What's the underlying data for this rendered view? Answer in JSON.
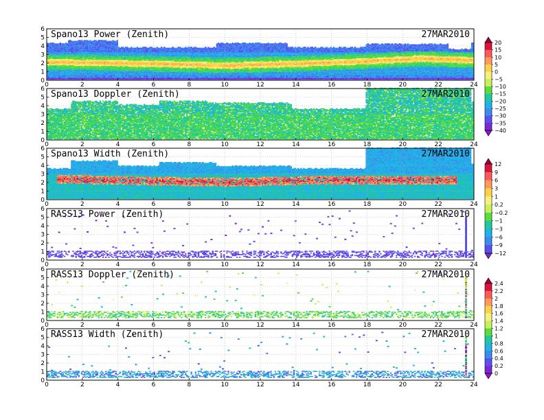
{
  "chart_data": [
    {
      "type": "heatmap",
      "title": "Spano13 Power (Zenith)",
      "date_label": "27MAR2010",
      "field": "power",
      "colorbar": "a",
      "xlim": [
        0,
        24
      ],
      "ylim": [
        0,
        6
      ],
      "x_ticks": [
        0,
        2,
        4,
        6,
        8,
        10,
        12,
        14,
        16,
        18,
        20,
        22,
        24
      ],
      "y_ticks": [
        0,
        1,
        2,
        3,
        4,
        5,
        6
      ],
      "top_height_km": [
        [
          0,
          4.3
        ],
        [
          1.2,
          4.6
        ],
        [
          4,
          3.8
        ],
        [
          9.5,
          4.3
        ],
        [
          13.5,
          3.8
        ],
        [
          17.9,
          4.2
        ],
        [
          22.5,
          3.6
        ],
        [
          23.8,
          4.4
        ]
      ],
      "band_center_km": [
        [
          0,
          2.1
        ],
        [
          6,
          1.9
        ],
        [
          10,
          1.7
        ],
        [
          14,
          1.9
        ],
        [
          18,
          2.2
        ],
        [
          21,
          2.5
        ],
        [
          24,
          2.3
        ]
      ],
      "band_peak_value": 5,
      "background_value": -25
    },
    {
      "type": "heatmap",
      "title": "Spano13 Doppler (Zenith)",
      "date_label": "27MAR2010",
      "field": "doppler",
      "colorbar": "a",
      "xlim": [
        0,
        24
      ],
      "ylim": [
        0,
        6
      ],
      "x_ticks": [
        0,
        2,
        4,
        6,
        8,
        10,
        12,
        14,
        16,
        18,
        20,
        22,
        24
      ],
      "y_ticks": [
        0,
        1,
        2,
        3,
        4,
        5,
        6
      ],
      "top_height_km": [
        [
          0,
          3.6
        ],
        [
          1.3,
          4.5
        ],
        [
          4,
          4.1
        ],
        [
          6.3,
          4.5
        ],
        [
          9,
          4.3
        ],
        [
          13.7,
          3.6
        ],
        [
          17.9,
          6.0
        ],
        [
          23.8,
          4.4
        ]
      ],
      "typical_value": -15
    },
    {
      "type": "heatmap",
      "title": "Spano13 Width (Zenith)",
      "date_label": "27MAR2010",
      "field": "width",
      "colorbar": "b",
      "xlim": [
        0,
        24
      ],
      "ylim": [
        0,
        6
      ],
      "x_ticks": [
        0,
        2,
        4,
        6,
        8,
        10,
        12,
        14,
        16,
        18,
        20,
        22,
        24
      ],
      "y_ticks": [
        0,
        1,
        2,
        3,
        4,
        5,
        6
      ],
      "top_height_km": [
        [
          0,
          3.6
        ],
        [
          1.3,
          4.5
        ],
        [
          4,
          3.9
        ],
        [
          6.3,
          4.3
        ],
        [
          9.5,
          3.9
        ],
        [
          13.7,
          3.6
        ],
        [
          17.9,
          6.0
        ],
        [
          23.8,
          4.2
        ]
      ],
      "band_center_km": [
        [
          0,
          2.4
        ],
        [
          10,
          2.0
        ],
        [
          16,
          2.3
        ],
        [
          24,
          2.2
        ]
      ],
      "band_peak_value": 9,
      "background_value": -3
    },
    {
      "type": "heatmap",
      "title": "RASS13 Power (Zenith)",
      "date_label": "27MAR2010",
      "field": "rass_power",
      "colorbar": "b",
      "xlim": [
        0,
        24
      ],
      "ylim": [
        0,
        6
      ],
      "x_ticks": [
        0,
        2,
        4,
        6,
        8,
        10,
        12,
        14,
        16,
        18,
        20,
        22,
        24
      ],
      "y_ticks": [
        0,
        1,
        2,
        3,
        4,
        5,
        6
      ],
      "layer_km": [
        0.3,
        1.0
      ],
      "typical_value": -11,
      "spike_hour": 23.5,
      "spike_top_km": 5.0
    },
    {
      "type": "heatmap",
      "title": "RASS13 Doppler (Zenith)",
      "date_label": "27MAR2010",
      "field": "rass_doppler",
      "colorbar": "c",
      "xlim": [
        0,
        24
      ],
      "ylim": [
        0,
        6
      ],
      "x_ticks": [
        0,
        2,
        4,
        6,
        8,
        10,
        12,
        14,
        16,
        18,
        20,
        22,
        24
      ],
      "y_ticks": [
        0,
        1,
        2,
        3,
        4,
        5,
        6
      ],
      "layer_km": [
        0.3,
        1.0
      ],
      "typical_value": 1.1,
      "spike_hour": 23.5,
      "spike_top_km": 5.0
    },
    {
      "type": "heatmap",
      "title": "RASS13 Width (Zenith)",
      "date_label": "27MAR2010",
      "field": "rass_width",
      "colorbar": "c",
      "xlim": [
        0,
        24
      ],
      "ylim": [
        0,
        6
      ],
      "x_ticks": [
        0,
        2,
        4,
        6,
        8,
        10,
        12,
        14,
        16,
        18,
        20,
        22,
        24
      ],
      "y_ticks": [
        0,
        1,
        2,
        3,
        4,
        5,
        6
      ],
      "layer_km": [
        0.3,
        1.0
      ],
      "typical_value": 0.6,
      "spike_hour": 23.5,
      "spike_top_km": 5.0
    }
  ],
  "colorbars": {
    "a": {
      "labels": [
        "20",
        "15",
        "10",
        "5",
        "0",
        "−5",
        "−10",
        "−15",
        "−20",
        "−25",
        "−30",
        "−35",
        "−40"
      ],
      "values": [
        20,
        15,
        10,
        5,
        0,
        -5,
        -10,
        -15,
        -20,
        -25,
        -30,
        -35,
        -40
      ],
      "colors": [
        "#a0003a",
        "#dc143c",
        "#ff5a5a",
        "#ff9a5a",
        "#ffd24a",
        "#f5f080",
        "#c8f05a",
        "#5adc3c",
        "#20c8a0",
        "#20b4e6",
        "#3c8cf0",
        "#5a50f0",
        "#7a28d2",
        "#9a10c8"
      ]
    },
    "b": {
      "labels": [
        "12",
        "9",
        "6",
        "3",
        "1",
        "0.2",
        "−0.2",
        "−1",
        "−3",
        "−6",
        "−9",
        "−12"
      ],
      "values": [
        12,
        9,
        6,
        3,
        1,
        0.2,
        -0.2,
        -1,
        -3,
        -6,
        -9,
        -12
      ],
      "colors": [
        "#a0003a",
        "#dc143c",
        "#ff5a5a",
        "#ff9a5a",
        "#ffd24a",
        "#f5f080",
        "#c8f05a",
        "#5adc3c",
        "#20c8a0",
        "#20b4e6",
        "#3c8cf0",
        "#5a50f0",
        "#7a28d2"
      ]
    },
    "c": {
      "labels": [
        "2.4",
        "2.2",
        "2",
        "1.8",
        "1.6",
        "1.4",
        "1.2",
        "1",
        "0.8",
        "0.6",
        "0.4",
        "0.2",
        "0"
      ],
      "values": [
        2.4,
        2.2,
        2.0,
        1.8,
        1.6,
        1.4,
        1.2,
        1.0,
        0.8,
        0.6,
        0.4,
        0.2,
        0
      ],
      "colors": [
        "#a0003a",
        "#dc143c",
        "#ff5a5a",
        "#ff9a5a",
        "#ffd24a",
        "#f5f080",
        "#c8f05a",
        "#5adc3c",
        "#20c8a0",
        "#20b4e6",
        "#3c8cf0",
        "#5a50f0",
        "#7a28d2",
        "#9a10c8"
      ]
    }
  }
}
